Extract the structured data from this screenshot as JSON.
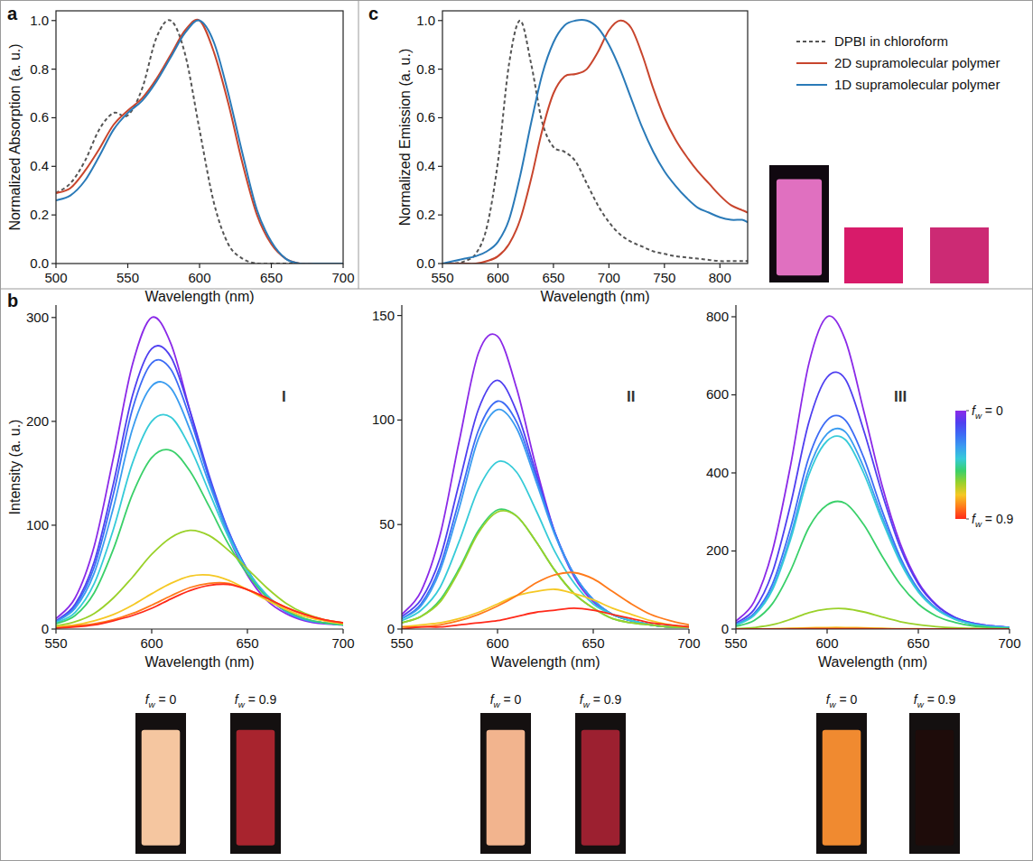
{
  "chart_data": [
    {
      "type": "line",
      "title": "a",
      "x_label": "Wavelength (nm)",
      "y_label": "Normalized Absorption (a. u.)",
      "xlim": [
        500,
        700
      ],
      "ylim": [
        0,
        1.04
      ],
      "xticks": [
        500,
        550,
        600,
        650,
        700
      ],
      "yticks": [
        {
          "value": 0,
          "label": "0.0"
        },
        0.2,
        0.4,
        0.6,
        0.8,
        {
          "value": 1,
          "label": "1.0"
        }
      ],
      "x": [
        500,
        510,
        520,
        530,
        540,
        550,
        560,
        570,
        580,
        590,
        600,
        610,
        620,
        630,
        640,
        650,
        660,
        670,
        680,
        690,
        700
      ],
      "series": [
        {
          "color": "#555555",
          "line_style": "dashed",
          "values": [
            0.29,
            0.33,
            0.42,
            0.55,
            0.62,
            0.61,
            0.72,
            0.93,
            1.0,
            0.86,
            0.55,
            0.25,
            0.08,
            0.02,
            0,
            0,
            0,
            0,
            0,
            0,
            0
          ]
        },
        {
          "color": "#c8452d",
          "line_style": "solid",
          "values": [
            0.29,
            0.31,
            0.38,
            0.47,
            0.57,
            0.63,
            0.68,
            0.76,
            0.86,
            0.96,
            1.0,
            0.87,
            0.66,
            0.41,
            0.2,
            0.08,
            0.02,
            0,
            0,
            0,
            0
          ]
        },
        {
          "color": "#2a7ab8",
          "line_style": "solid",
          "values": [
            0.26,
            0.28,
            0.34,
            0.44,
            0.55,
            0.62,
            0.67,
            0.75,
            0.85,
            0.95,
            1.0,
            0.91,
            0.7,
            0.45,
            0.22,
            0.09,
            0.02,
            0,
            0,
            0,
            0
          ]
        }
      ]
    },
    {
      "type": "line",
      "title": "c",
      "x_label": "Wavelength (nm)",
      "y_label": "Normalized Emission (a. u.)",
      "xlim": [
        550,
        825
      ],
      "ylim": [
        0,
        1.04
      ],
      "xticks": [
        550,
        600,
        650,
        700,
        750,
        800
      ],
      "yticks": [
        {
          "value": 0,
          "label": "0.0"
        },
        0.2,
        0.4,
        0.6,
        0.8,
        {
          "value": 1,
          "label": "1.0"
        }
      ],
      "legend": "right",
      "x": [
        550,
        560,
        570,
        580,
        590,
        600,
        610,
        620,
        630,
        640,
        650,
        660,
        670,
        680,
        690,
        700,
        710,
        720,
        730,
        740,
        750,
        760,
        770,
        780,
        790,
        800,
        810,
        820,
        825
      ],
      "series": [
        {
          "name": "DPBI in chloroform",
          "color": "#555555",
          "line_style": "dashed",
          "values": [
            0,
            0,
            0.01,
            0.04,
            0.15,
            0.42,
            0.82,
            1.0,
            0.82,
            0.58,
            0.48,
            0.46,
            0.42,
            0.33,
            0.24,
            0.17,
            0.12,
            0.09,
            0.07,
            0.05,
            0.04,
            0.03,
            0.025,
            0.02,
            0.015,
            0.01,
            0.01,
            0.01,
            0.01
          ]
        },
        {
          "name": "2D supramolecular polymer",
          "color": "#c8452d",
          "line_style": "solid",
          "values": [
            0,
            0,
            0,
            0,
            0.01,
            0.03,
            0.08,
            0.18,
            0.35,
            0.55,
            0.7,
            0.77,
            0.78,
            0.8,
            0.87,
            0.96,
            1.0,
            0.97,
            0.86,
            0.72,
            0.6,
            0.51,
            0.44,
            0.38,
            0.33,
            0.28,
            0.24,
            0.22,
            0.21
          ]
        },
        {
          "name": "1D supramolecular polymer",
          "color": "#2a7ab8",
          "line_style": "solid",
          "values": [
            0,
            0.01,
            0.02,
            0.03,
            0.05,
            0.09,
            0.18,
            0.36,
            0.58,
            0.78,
            0.91,
            0.98,
            1.0,
            1.0,
            0.97,
            0.9,
            0.8,
            0.68,
            0.56,
            0.46,
            0.38,
            0.32,
            0.27,
            0.23,
            0.21,
            0.19,
            0.18,
            0.18,
            0.17
          ]
        }
      ]
    },
    {
      "type": "line",
      "title": "b",
      "subtitle": "I",
      "x_label": "Wavelength (nm)",
      "y_label": "Intensity (a. u.)",
      "xlim": [
        550,
        700
      ],
      "ylim": [
        0,
        312
      ],
      "xticks": [
        550,
        600,
        650,
        700
      ],
      "yticks": [
        0,
        100,
        200,
        300
      ],
      "annotations": [
        "fw = 0",
        "fw = 0.9"
      ],
      "x": [
        550,
        560,
        570,
        580,
        590,
        600,
        610,
        620,
        630,
        640,
        650,
        660,
        670,
        680,
        690,
        700
      ],
      "series": [
        {
          "color": "#8b2ae8",
          "values": [
            10,
            30,
            80,
            165,
            255,
            300,
            275,
            210,
            145,
            90,
            52,
            28,
            15,
            8,
            5,
            4
          ]
        },
        {
          "color": "#4f3ff0",
          "values": [
            8,
            24,
            65,
            140,
            225,
            270,
            262,
            210,
            148,
            95,
            57,
            32,
            17,
            9,
            6,
            4
          ]
        },
        {
          "color": "#3d6cf5",
          "values": [
            7,
            22,
            60,
            130,
            212,
            256,
            250,
            203,
            145,
            94,
            57,
            32,
            17,
            9,
            6,
            4
          ]
        },
        {
          "color": "#3a9cf0",
          "values": [
            7,
            20,
            54,
            117,
            193,
            234,
            232,
            192,
            140,
            92,
            56,
            32,
            17,
            9,
            6,
            4
          ]
        },
        {
          "color": "#36cbd8",
          "values": [
            6,
            16,
            44,
            96,
            160,
            200,
            204,
            175,
            132,
            89,
            56,
            33,
            18,
            10,
            6,
            4
          ]
        },
        {
          "color": "#3ad06a",
          "values": [
            5,
            13,
            35,
            77,
            130,
            165,
            172,
            152,
            118,
            82,
            53,
            31,
            18,
            10,
            6,
            4
          ]
        },
        {
          "color": "#9ad12a",
          "values": [
            3,
            7,
            15,
            30,
            50,
            72,
            88,
            95,
            90,
            76,
            58,
            40,
            25,
            15,
            9,
            6
          ]
        },
        {
          "color": "#f5c824",
          "values": [
            2,
            4,
            8,
            14,
            23,
            34,
            44,
            51,
            52,
            47,
            38,
            28,
            19,
            12,
            8,
            5
          ]
        },
        {
          "color": "#ff7a1a",
          "values": [
            1,
            3,
            5,
            9,
            15,
            23,
            32,
            40,
            44,
            44,
            38,
            30,
            21,
            14,
            9,
            6
          ]
        },
        {
          "color": "#ff2a1a",
          "values": [
            1,
            2,
            4,
            8,
            13,
            20,
            29,
            37,
            42,
            43,
            38,
            30,
            21,
            14,
            9,
            6
          ]
        }
      ]
    },
    {
      "type": "line",
      "subtitle": "II",
      "x_label": "Wavelength (nm)",
      "xlim": [
        550,
        700
      ],
      "ylim": [
        0,
        155
      ],
      "xticks": [
        550,
        600,
        650,
        700
      ],
      "yticks": [
        0,
        50,
        100,
        150
      ],
      "annotations": [
        "fw = 0",
        "fw = 0.9"
      ],
      "x": [
        550,
        560,
        570,
        580,
        590,
        600,
        610,
        620,
        630,
        640,
        650,
        660,
        670,
        680,
        690,
        700
      ],
      "series": [
        {
          "color": "#8b2ae8",
          "values": [
            7,
            18,
            45,
            90,
            132,
            140,
            115,
            78,
            46,
            25,
            13,
            7,
            4,
            2,
            1,
            1
          ]
        },
        {
          "color": "#4f3ff0",
          "values": [
            6,
            14,
            34,
            70,
            105,
            119,
            104,
            75,
            46,
            26,
            14,
            7,
            4,
            2,
            1,
            1
          ]
        },
        {
          "color": "#3d6cf5",
          "values": [
            5,
            12,
            30,
            62,
            95,
            109,
            99,
            73,
            46,
            26,
            14,
            7,
            4,
            2,
            1,
            1
          ]
        },
        {
          "color": "#3a9cf0",
          "values": [
            5,
            11,
            28,
            58,
            91,
            105,
            96,
            71,
            45,
            26,
            14,
            7,
            4,
            2,
            1,
            1
          ]
        },
        {
          "color": "#36cbd8",
          "values": [
            4,
            9,
            20,
            42,
            67,
            80,
            75,
            57,
            37,
            22,
            12,
            7,
            4,
            2,
            1,
            1
          ]
        },
        {
          "color": "#3ad06a",
          "values": [
            3,
            6,
            14,
            29,
            47,
            57,
            54,
            42,
            28,
            17,
            10,
            5,
            3,
            2,
            1,
            1
          ]
        },
        {
          "color": "#9ad12a",
          "values": [
            3,
            6,
            13,
            28,
            46,
            56,
            54,
            42,
            28,
            17,
            10,
            5,
            3,
            2,
            1,
            1
          ]
        },
        {
          "color": "#f5c824",
          "values": [
            1,
            2,
            3,
            5,
            8,
            12,
            16,
            18,
            19,
            17,
            14,
            10,
            7,
            4,
            2,
            1
          ]
        },
        {
          "color": "#ff7a1a",
          "values": [
            1,
            1,
            2,
            4,
            7,
            11,
            16,
            22,
            26,
            27,
            24,
            18,
            12,
            7,
            4,
            2
          ]
        },
        {
          "color": "#ff2a1a",
          "values": [
            0,
            1,
            1,
            2,
            3,
            4,
            6,
            8,
            9,
            10,
            9,
            7,
            5,
            3,
            2,
            1
          ]
        }
      ]
    },
    {
      "type": "line",
      "subtitle": "III",
      "x_label": "Wavelength (nm)",
      "xlim": [
        550,
        700
      ],
      "ylim": [
        0,
        830
      ],
      "xticks": [
        550,
        600,
        650,
        700
      ],
      "yticks": [
        0,
        200,
        400,
        600,
        800
      ],
      "annotations": [
        "fw = 0",
        "fw = 0.9"
      ],
      "colorbar": {
        "range": [
          0,
          0.9
        ],
        "ticks": [
          {
            "value": 0,
            "label": "fw = 0"
          },
          {
            "value": 0.9,
            "label": "fw = 0.9"
          }
        ]
      },
      "x": [
        550,
        560,
        570,
        580,
        590,
        600,
        610,
        620,
        630,
        640,
        650,
        660,
        670,
        680,
        690,
        700
      ],
      "series": [
        {
          "color": "#8b2ae8",
          "values": [
            20,
            70,
            200,
            420,
            680,
            800,
            740,
            560,
            370,
            220,
            120,
            62,
            30,
            15,
            8,
            4
          ]
        },
        {
          "color": "#4f3ff0",
          "values": [
            15,
            50,
            145,
            320,
            530,
            645,
            640,
            510,
            350,
            210,
            115,
            60,
            30,
            15,
            8,
            4
          ]
        },
        {
          "color": "#3d6cf5",
          "values": [
            12,
            40,
            115,
            260,
            440,
            535,
            535,
            440,
            305,
            185,
            102,
            53,
            27,
            13,
            7,
            4
          ]
        },
        {
          "color": "#3a9cf0",
          "values": [
            11,
            37,
            105,
            240,
            410,
            500,
            505,
            415,
            290,
            178,
            98,
            51,
            26,
            13,
            7,
            4
          ]
        },
        {
          "color": "#36cbd8",
          "values": [
            10,
            35,
            100,
            230,
            395,
            482,
            485,
            400,
            280,
            172,
            95,
            50,
            25,
            12,
            6,
            3
          ]
        },
        {
          "color": "#3ad06a",
          "values": [
            7,
            22,
            65,
            150,
            260,
            318,
            322,
            268,
            188,
            115,
            64,
            33,
            17,
            8,
            4,
            2
          ]
        },
        {
          "color": "#9ad12a",
          "values": [
            1,
            4,
            11,
            25,
            42,
            51,
            52,
            44,
            31,
            19,
            11,
            6,
            3,
            2,
            1,
            0
          ]
        },
        {
          "color": "#f5c824",
          "values": [
            0,
            0,
            1,
            2,
            3,
            4,
            4,
            3,
            2,
            1,
            1,
            0,
            0,
            0,
            0,
            0
          ]
        },
        {
          "color": "#ff7a1a",
          "values": [
            0,
            0,
            0,
            1,
            1,
            1,
            1,
            1,
            1,
            0,
            0,
            0,
            0,
            0,
            0,
            0
          ]
        },
        {
          "color": "#ff2a1a",
          "values": [
            0,
            0,
            0,
            0,
            1,
            1,
            1,
            1,
            0,
            0,
            0,
            0,
            0,
            0,
            0,
            0
          ]
        }
      ]
    }
  ]
}
